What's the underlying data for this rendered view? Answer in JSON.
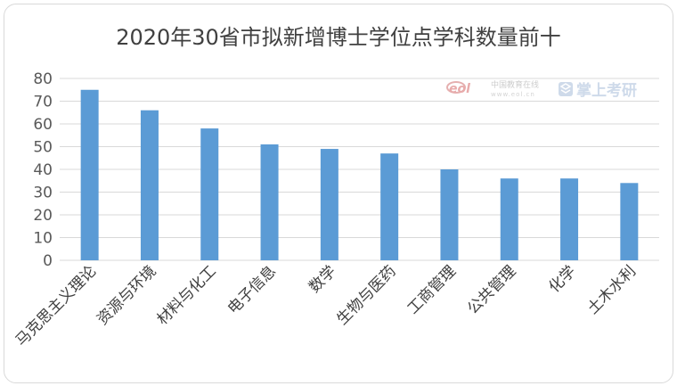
{
  "chart_data": {
    "type": "bar",
    "title": "2020年30省市拟新增博士学位点学科数量前十",
    "categories": [
      "马克思主义理论",
      "资源与环境",
      "材料与化工",
      "电子信息",
      "数学",
      "生物与医药",
      "工商管理",
      "公共管理",
      "化学",
      "土木水利"
    ],
    "values": [
      75,
      66,
      58,
      51,
      49,
      47,
      40,
      36,
      36,
      34
    ],
    "ylim": [
      0,
      80
    ],
    "yticks": [
      0,
      10,
      20,
      30,
      40,
      50,
      60,
      70,
      80
    ],
    "grid": true,
    "legend": "none",
    "bar_color": "#5b9bd5",
    "grid_color": "#d9d9d9"
  },
  "watermark": {
    "logo": "eol",
    "site_name": "中国教育在线",
    "site_url": "www.eol.cn",
    "brand": "掌上考研"
  }
}
